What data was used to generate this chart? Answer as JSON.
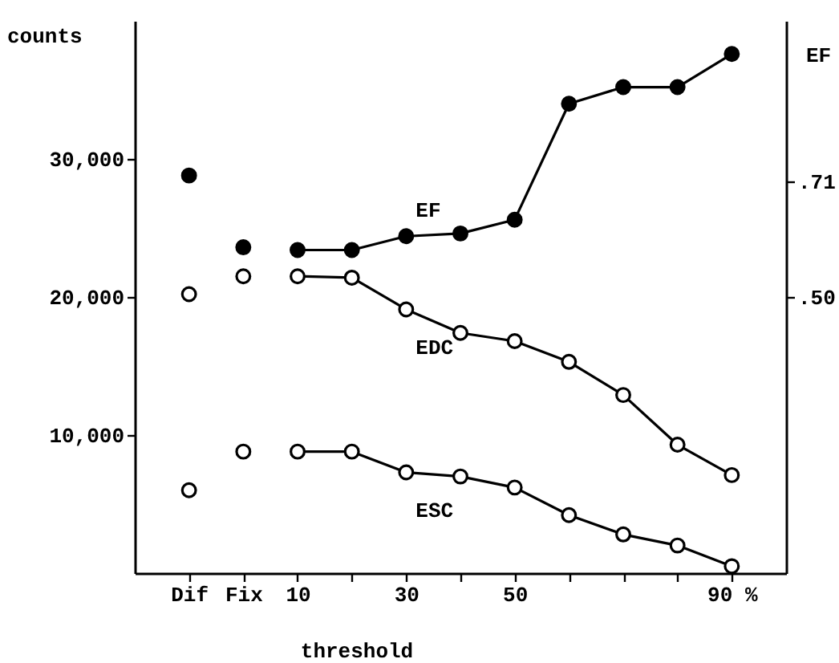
{
  "chart_data": {
    "type": "line",
    "xlabel": "threshold",
    "ylabel": "counts",
    "y2label": "EF",
    "categories": [
      "Dif",
      "Fix",
      "10",
      null,
      "30",
      null,
      "50",
      null,
      null,
      null,
      "90 %"
    ],
    "ylim": [
      0,
      40000
    ],
    "yticks": [
      {
        "value": 10000,
        "label": "10,000"
      },
      {
        "value": 20000,
        "label": "20,000"
      },
      {
        "value": 30000,
        "label": "30,000"
      }
    ],
    "y2lim": [
      0,
      1
    ],
    "y2ticks": [
      {
        "value": 0.5,
        "label": ".50"
      },
      {
        "value": 0.71,
        "label": ".71"
      }
    ],
    "marker": "circle",
    "grid": false,
    "series": [
      {
        "name": "EF",
        "axis": "y2",
        "color": "#000000",
        "values": [
          null,
          null,
          0.585,
          0.585,
          0.61,
          0.615,
          0.64,
          0.85,
          0.88,
          0.88,
          0.94
        ]
      },
      {
        "type": "scatter",
        "axis": "y2",
        "color": "#000000",
        "values": [
          0.72,
          0.59,
          null,
          null,
          null,
          null,
          null,
          null,
          null,
          null,
          null
        ]
      },
      {
        "name": "EDC",
        "color": "#000000",
        "values": [
          null,
          null,
          21500,
          21400,
          19100,
          17400,
          16800,
          15300,
          12900,
          9300,
          7100
        ]
      },
      {
        "type": "scatter",
        "color": "#000000",
        "values": [
          20200,
          21500,
          null,
          null,
          null,
          null,
          null,
          null,
          null,
          null,
          null
        ]
      },
      {
        "name": "ESC",
        "color": "#000000",
        "values": [
          null,
          null,
          8800,
          8800,
          7300,
          7000,
          6200,
          4200,
          2800,
          2000,
          500
        ]
      },
      {
        "type": "scatter",
        "color": "#000000",
        "values": [
          6000,
          8800,
          null,
          null,
          null,
          null,
          null,
          null,
          null,
          null,
          null
        ]
      }
    ]
  }
}
